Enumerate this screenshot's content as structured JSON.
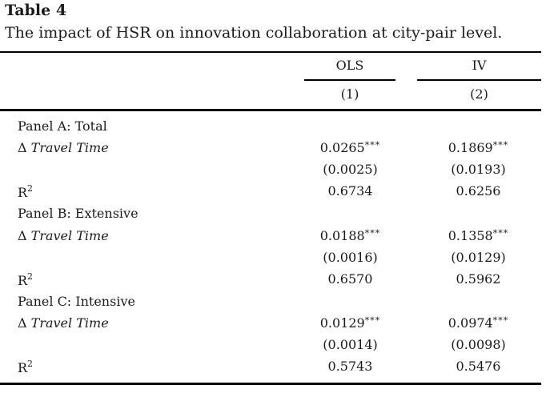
{
  "table": {
    "label": "Table 4",
    "caption": "The impact of HSR on innovation collaboration at city-pair level.",
    "columns": [
      {
        "method": "OLS",
        "number": "(1)"
      },
      {
        "method": "IV",
        "number": "(2)"
      }
    ],
    "delta_symbol": "Δ",
    "travel_time_label": "Travel Time",
    "r2_base": "R",
    "r2_sup": "2",
    "stars": "***",
    "panels": [
      {
        "title": "Panel A: Total",
        "coef": [
          "0.0265",
          "0.1869"
        ],
        "se": [
          "(0.0025)",
          "(0.0193)"
        ],
        "r2": [
          "0.6734",
          "0.6256"
        ]
      },
      {
        "title": "Panel B: Extensive",
        "coef": [
          "0.0188",
          "0.1358"
        ],
        "se": [
          "(0.0016)",
          "(0.0129)"
        ],
        "r2": [
          "0.6570",
          "0.5962"
        ]
      },
      {
        "title": "Panel C: Intensive",
        "coef": [
          "0.0129",
          "0.0974"
        ],
        "se": [
          "(0.0014)",
          "(0.0098)"
        ],
        "r2": [
          "0.5743",
          "0.5476"
        ]
      }
    ]
  }
}
